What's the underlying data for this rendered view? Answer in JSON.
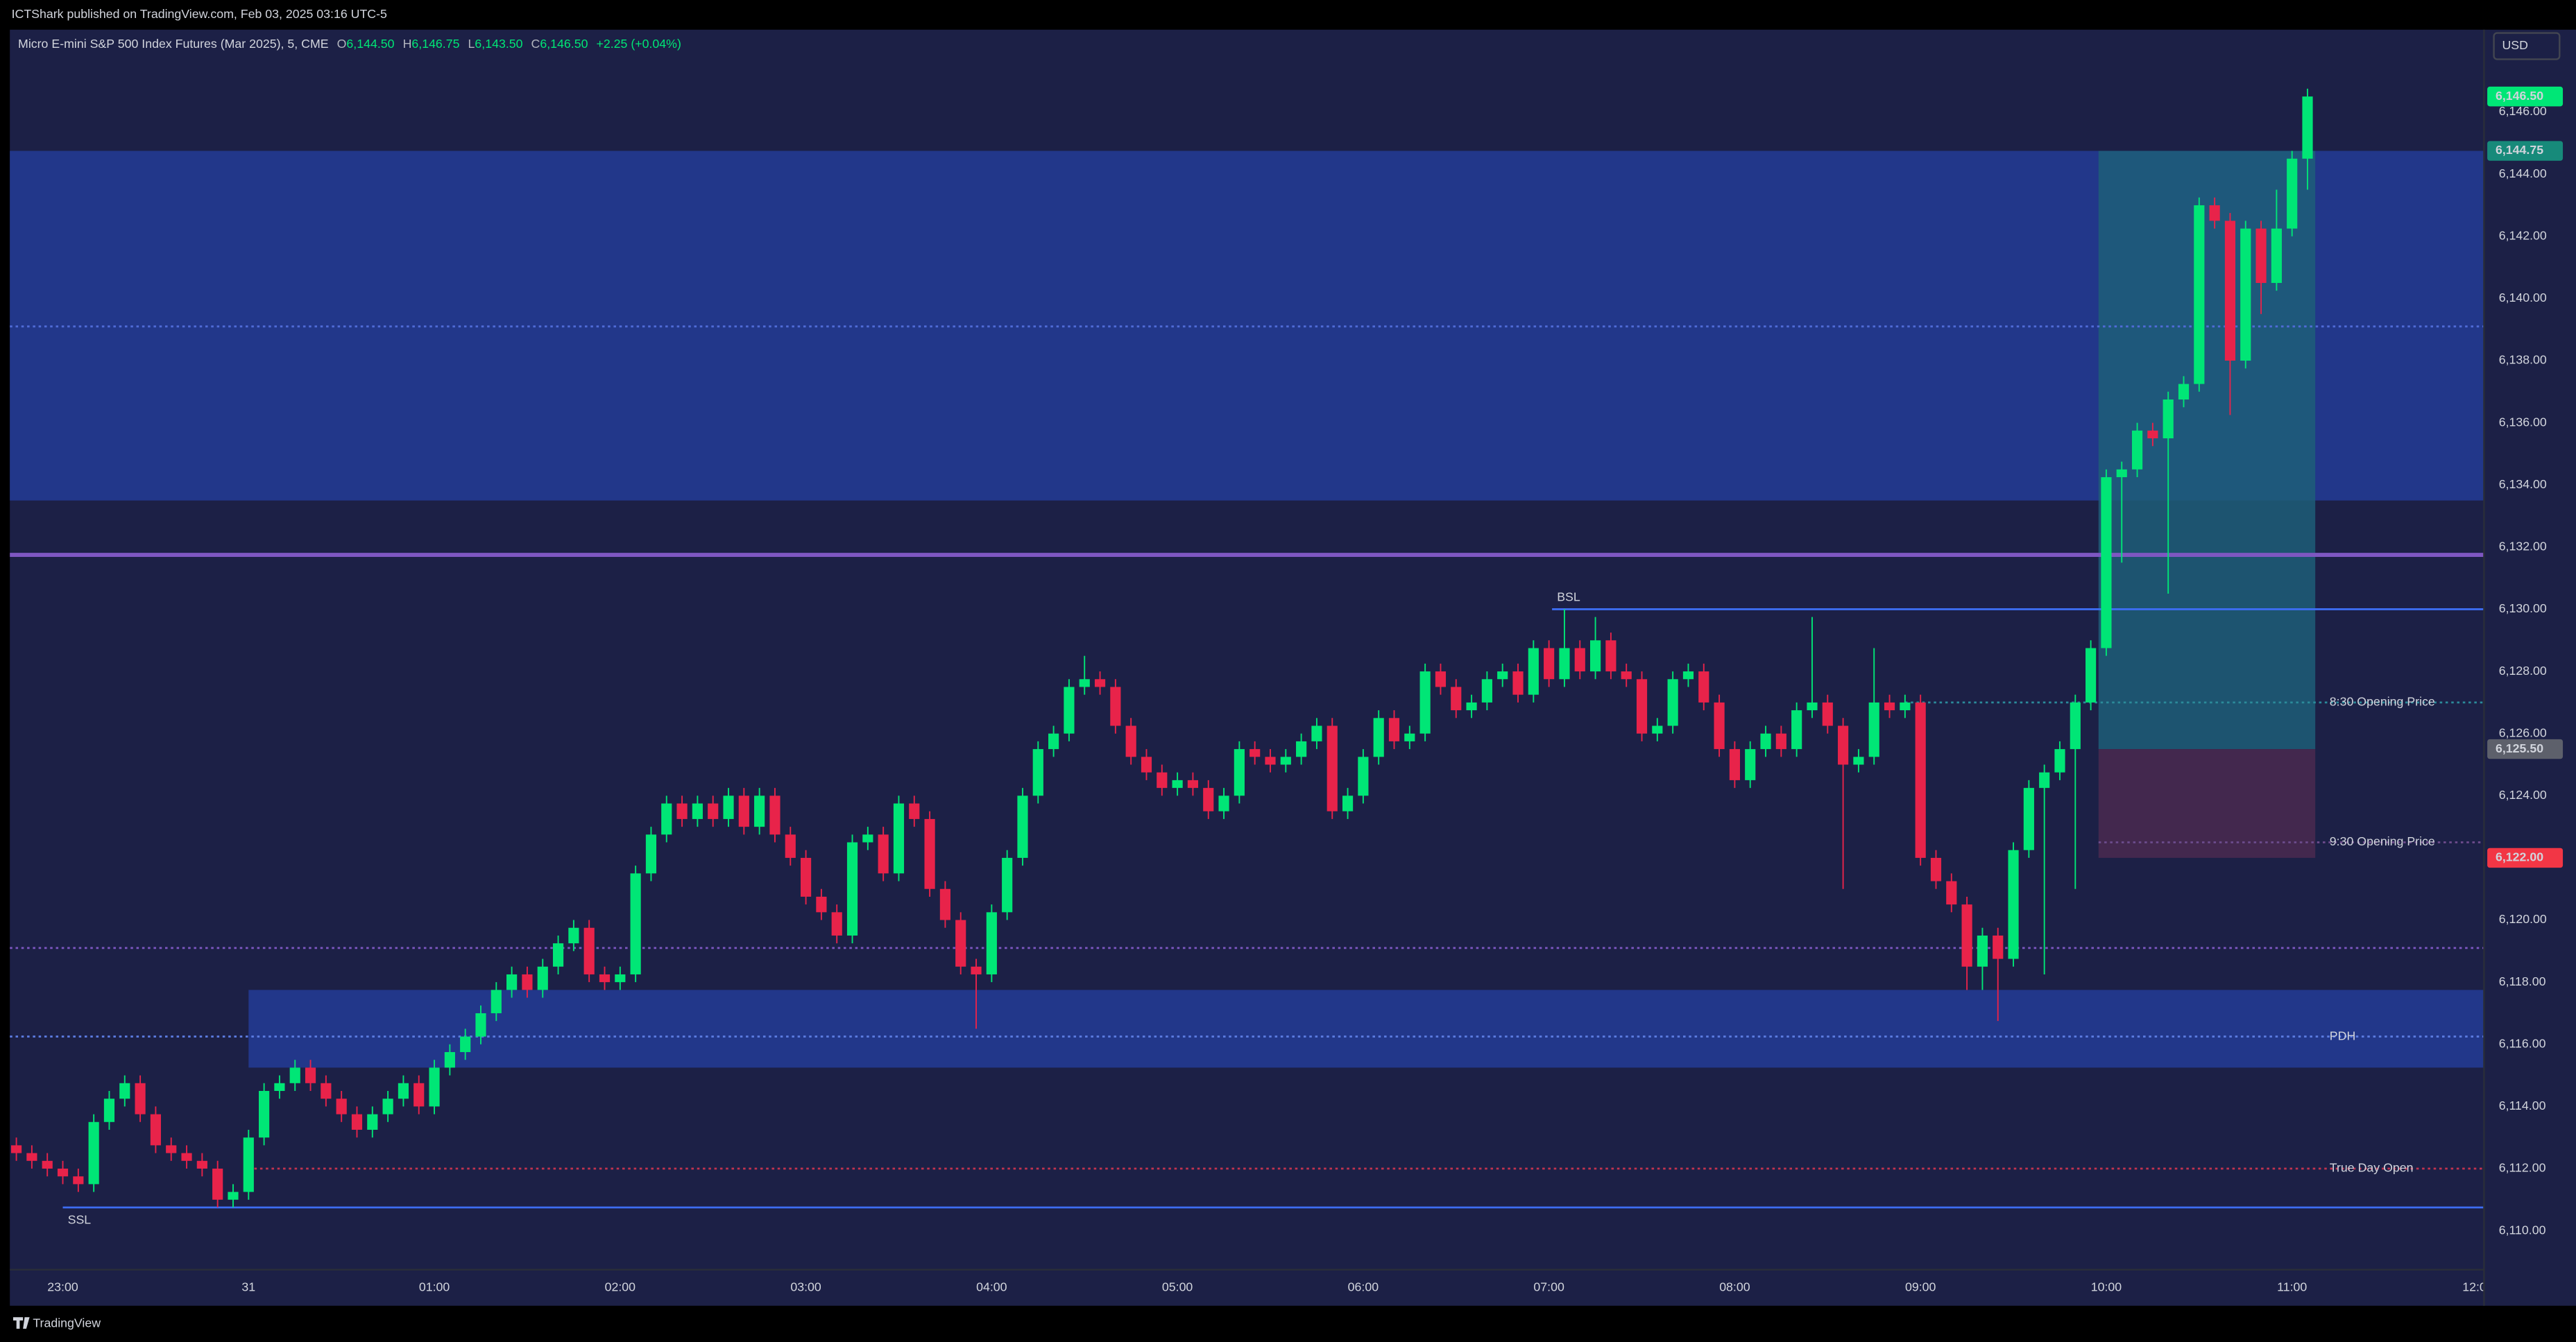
{
  "header": {
    "published": "ICTShark published on TradingView.com, Feb 03, 2025 03:16 UTC-5",
    "symbol": "Micro E-mini S&P 500 Index Futures (Mar 2025), 5, CME",
    "ohlc": [
      {
        "label": "O",
        "value": "6,144.50"
      },
      {
        "label": "H",
        "value": "6,146.75"
      },
      {
        "label": "L",
        "value": "6,143.50"
      },
      {
        "label": "C",
        "value": "6,146.50"
      }
    ],
    "change": "+2.25 (+0.04%)"
  },
  "footer": {
    "brand": "TradingView"
  },
  "chart_data": {
    "type": "candlestick",
    "currency": "USD",
    "up_color": "#00e676",
    "down_color": "#e8234a",
    "background": "#1c2046",
    "grid": false,
    "xlim": [
      -0.42,
      159.4
    ],
    "ylim": [
      6108.75,
      6148.65
    ],
    "xticks": [
      {
        "value": 3,
        "label": "23:00"
      },
      {
        "value": 15,
        "label": "31"
      },
      {
        "value": 27,
        "label": "01:00"
      },
      {
        "value": 39,
        "label": "02:00"
      },
      {
        "value": 51,
        "label": "03:00"
      },
      {
        "value": 63,
        "label": "04:00"
      },
      {
        "value": 75,
        "label": "05:00"
      },
      {
        "value": 87,
        "label": "06:00"
      },
      {
        "value": 99,
        "label": "07:00"
      },
      {
        "value": 111,
        "label": "08:00"
      },
      {
        "value": 123,
        "label": "09:00"
      },
      {
        "value": 135,
        "label": "10:00"
      },
      {
        "value": 147,
        "label": "11:00"
      },
      {
        "value": 159,
        "label": "12:00"
      }
    ],
    "yticks": [
      {
        "value": 6110,
        "label": "6,110.00"
      },
      {
        "value": 6112,
        "label": "6,112.00"
      },
      {
        "value": 6114,
        "label": "6,114.00"
      },
      {
        "value": 6116,
        "label": "6,116.00"
      },
      {
        "value": 6118,
        "label": "6,118.00"
      },
      {
        "value": 6120,
        "label": "6,120.00"
      },
      {
        "value": 6122,
        "label": "6,122.00"
      },
      {
        "value": 6124,
        "label": "6,124.00"
      },
      {
        "value": 6126,
        "label": "6,126.00"
      },
      {
        "value": 6128,
        "label": "6,128.00"
      },
      {
        "value": 6130,
        "label": "6,130.00"
      },
      {
        "value": 6132,
        "label": "6,132.00"
      },
      {
        "value": 6134,
        "label": "6,134.00"
      },
      {
        "value": 6136,
        "label": "6,136.00"
      },
      {
        "value": 6138,
        "label": "6,138.00"
      },
      {
        "value": 6140,
        "label": "6,140.00"
      },
      {
        "value": 6142,
        "label": "6,142.00"
      },
      {
        "value": 6144,
        "label": "6,144.00"
      },
      {
        "value": 6146,
        "label": "6,146.00"
      }
    ],
    "open": [
      6112.75,
      6112.5,
      6112.25,
      6112.0,
      6111.75,
      6111.5,
      6113.5,
      6114.25,
      6114.75,
      6113.75,
      6112.75,
      6112.5,
      6112.25,
      6112.0,
      6111.0,
      6111.25,
      6113.0,
      6114.5,
      6114.75,
      6115.25,
      6114.75,
      6114.25,
      6113.75,
      6113.25,
      6113.75,
      6114.25,
      6114.75,
      6114.0,
      6115.25,
      6115.75,
      6116.25,
      6117.0,
      6117.75,
      6118.25,
      6117.75,
      6118.5,
      6119.25,
      6119.75,
      6118.25,
      6118.0,
      6118.25,
      6121.5,
      6122.75,
      6123.75,
      6123.25,
      6123.75,
      6123.25,
      6124.0,
      6123.0,
      6124.0,
      6122.75,
      6122.0,
      6120.75,
      6120.25,
      6119.5,
      6122.5,
      6122.75,
      6121.5,
      6123.75,
      6123.25,
      6121.0,
      6120.0,
      6118.5,
      6118.25,
      6120.25,
      6122.0,
      6124.0,
      6125.5,
      6126.0,
      6127.5,
      6127.75,
      6127.5,
      6126.25,
      6125.25,
      6124.75,
      6124.25,
      6124.5,
      6124.25,
      6123.5,
      6124.0,
      6125.5,
      6125.25,
      6125.0,
      6125.25,
      6125.75,
      6126.25,
      6123.5,
      6124.0,
      6125.25,
      6126.5,
      6125.75,
      6126.0,
      6128.0,
      6127.5,
      6126.75,
      6127.0,
      6127.75,
      6128.0,
      6127.25,
      6128.75,
      6127.75,
      6128.75,
      6128.0,
      6129.0,
      6128.0,
      6127.75,
      6126.0,
      6126.25,
      6127.75,
      6128.0,
      6127.0,
      6125.5,
      6124.5,
      6125.5,
      6126.0,
      6125.5,
      6126.75,
      6127.0,
      6126.25,
      6125.0,
      6125.25,
      6127.0,
      6126.75,
      6127.0,
      6122.0,
      6121.25,
      6120.5,
      6118.5,
      6119.5,
      6118.75,
      6122.25,
      6124.25,
      6124.75,
      6125.5,
      6127.0,
      6128.75,
      6134.25,
      6134.5,
      6135.75,
      6135.5,
      6136.75,
      6137.25,
      6143.0,
      6142.5,
      6138.0,
      6142.25,
      6140.5,
      6142.25,
      6144.5
    ],
    "high": [
      6113.0,
      6112.75,
      6112.5,
      6112.25,
      6112.0,
      6113.75,
      6114.5,
      6115.0,
      6115.0,
      6114.0,
      6113.0,
      6112.75,
      6112.5,
      6112.25,
      6111.5,
      6113.25,
      6114.75,
      6115.0,
      6115.5,
      6115.5,
      6115.0,
      6114.5,
      6114.0,
      6114.0,
      6114.5,
      6115.0,
      6115.0,
      6115.5,
      6116.0,
      6116.5,
      6117.25,
      6118.0,
      6118.5,
      6118.5,
      6118.75,
      6119.5,
      6120.0,
      6120.0,
      6118.5,
      6118.5,
      6121.75,
      6123.0,
      6124.0,
      6124.0,
      6124.0,
      6124.0,
      6124.25,
      6124.25,
      6124.25,
      6124.25,
      6123.0,
      6122.25,
      6121.0,
      6120.5,
      6122.75,
      6123.0,
      6123.0,
      6124.0,
      6124.0,
      6123.5,
      6121.25,
      6120.25,
      6118.75,
      6120.5,
      6122.25,
      6124.25,
      6125.75,
      6126.25,
      6127.75,
      6128.5,
      6128.0,
      6127.75,
      6126.5,
      6125.5,
      6125.0,
      6124.75,
      6124.75,
      6124.5,
      6124.25,
      6125.75,
      6125.75,
      6125.5,
      6125.5,
      6126.0,
      6126.5,
      6126.5,
      6124.25,
      6125.5,
      6126.75,
      6126.75,
      6126.25,
      6128.25,
      6128.25,
      6127.75,
      6127.25,
      6128.0,
      6128.25,
      6128.25,
      6129.0,
      6129.0,
      6130.0,
      6129.0,
      6129.75,
      6129.25,
      6128.25,
      6128.0,
      6126.5,
      6128.0,
      6128.25,
      6128.25,
      6127.25,
      6125.75,
      6125.75,
      6126.25,
      6126.25,
      6127.0,
      6129.75,
      6127.25,
      6126.5,
      6125.5,
      6128.75,
      6127.25,
      6127.25,
      6127.25,
      6122.25,
      6121.5,
      6120.75,
      6119.75,
      6119.75,
      6122.5,
      6124.5,
      6125.0,
      6125.75,
      6127.25,
      6129.0,
      6134.5,
      6134.75,
      6136.0,
      6136.0,
      6137.0,
      6137.5,
      6143.25,
      6143.25,
      6142.75,
      6142.5,
      6142.5,
      6143.5,
      6144.75,
      6146.75
    ],
    "low": [
      6112.25,
      6112.0,
      6111.75,
      6111.5,
      6111.25,
      6111.25,
      6113.25,
      6114.0,
      6113.5,
      6112.5,
      6112.25,
      6112.0,
      6111.75,
      6110.75,
      6110.75,
      6111.0,
      6112.75,
      6114.25,
      6114.5,
      6114.5,
      6114.0,
      6113.5,
      6113.0,
      6113.0,
      6113.5,
      6114.0,
      6113.75,
      6113.75,
      6115.0,
      6115.5,
      6116.0,
      6116.75,
      6117.5,
      6117.5,
      6117.5,
      6118.25,
      6119.0,
      6118.0,
      6117.75,
      6117.75,
      6118.0,
      6121.25,
      6122.5,
      6123.0,
      6123.0,
      6123.0,
      6123.0,
      6122.75,
      6122.75,
      6122.5,
      6121.75,
      6120.5,
      6120.0,
      6119.25,
      6119.25,
      6122.25,
      6121.25,
      6121.25,
      6123.0,
      6120.75,
      6119.75,
      6118.25,
      6116.5,
      6118.0,
      6120.0,
      6121.75,
      6123.75,
      6125.25,
      6125.75,
      6127.25,
      6127.25,
      6126.0,
      6125.0,
      6124.5,
      6124.0,
      6124.0,
      6124.0,
      6123.25,
      6123.25,
      6123.75,
      6125.0,
      6124.75,
      6124.75,
      6125.0,
      6125.5,
      6123.25,
      6123.25,
      6123.75,
      6125.0,
      6125.5,
      6125.5,
      6125.75,
      6127.25,
      6126.5,
      6126.5,
      6126.75,
      6127.5,
      6127.0,
      6127.0,
      6127.5,
      6127.5,
      6127.75,
      6127.75,
      6127.75,
      6127.5,
      6125.75,
      6125.75,
      6126.0,
      6127.5,
      6126.75,
      6125.25,
      6124.25,
      6124.25,
      6125.25,
      6125.25,
      6125.25,
      6126.5,
      6126.0,
      6121.0,
      6124.75,
      6125.0,
      6126.5,
      6126.5,
      6121.75,
      6121.0,
      6120.25,
      6117.75,
      6117.75,
      6116.75,
      6118.5,
      6122.0,
      6118.25,
      6124.5,
      6121.0,
      6126.75,
      6128.5,
      6131.5,
      6134.25,
      6135.25,
      6130.5,
      6136.5,
      6137.0,
      6142.25,
      6136.25,
      6137.75,
      6139.5,
      6140.25,
      6142.0,
      6143.5
    ],
    "close": [
      6112.5,
      6112.25,
      6112.0,
      6111.75,
      6111.5,
      6113.5,
      6114.25,
      6114.75,
      6113.75,
      6112.75,
      6112.5,
      6112.25,
      6112.0,
      6111.0,
      6111.25,
      6113.0,
      6114.5,
      6114.75,
      6115.25,
      6114.75,
      6114.25,
      6113.75,
      6113.25,
      6113.75,
      6114.25,
      6114.75,
      6114.0,
      6115.25,
      6115.75,
      6116.25,
      6117.0,
      6117.75,
      6118.25,
      6117.75,
      6118.5,
      6119.25,
      6119.75,
      6118.25,
      6118.0,
      6118.25,
      6121.5,
      6122.75,
      6123.75,
      6123.25,
      6123.75,
      6123.25,
      6124.0,
      6123.0,
      6124.0,
      6122.75,
      6122.0,
      6120.75,
      6120.25,
      6119.5,
      6122.5,
      6122.75,
      6121.5,
      6123.75,
      6123.25,
      6121.0,
      6120.0,
      6118.5,
      6118.25,
      6120.25,
      6122.0,
      6124.0,
      6125.5,
      6126.0,
      6127.5,
      6127.75,
      6127.5,
      6126.25,
      6125.25,
      6124.75,
      6124.25,
      6124.5,
      6124.25,
      6123.5,
      6124.0,
      6125.5,
      6125.25,
      6125.0,
      6125.25,
      6125.75,
      6126.25,
      6123.5,
      6124.0,
      6125.25,
      6126.5,
      6125.75,
      6126.0,
      6128.0,
      6127.5,
      6126.75,
      6127.0,
      6127.75,
      6128.0,
      6127.25,
      6128.75,
      6127.75,
      6128.75,
      6128.0,
      6129.0,
      6128.0,
      6127.75,
      6126.0,
      6126.25,
      6127.75,
      6128.0,
      6127.0,
      6125.5,
      6124.5,
      6125.5,
      6126.0,
      6125.5,
      6126.75,
      6127.0,
      6126.25,
      6125.0,
      6125.25,
      6127.0,
      6126.75,
      6127.0,
      6122.0,
      6121.25,
      6120.5,
      6118.5,
      6119.5,
      6118.75,
      6122.25,
      6124.25,
      6124.75,
      6125.5,
      6127.0,
      6128.75,
      6134.25,
      6134.5,
      6135.75,
      6135.5,
      6136.75,
      6137.25,
      6143.0,
      6142.5,
      6138.0,
      6142.25,
      6140.5,
      6142.25,
      6144.5,
      6146.5
    ],
    "zones": [
      {
        "from": 6133.5,
        "to": 6144.75,
        "start": -0.42,
        "color": "#22378a"
      },
      {
        "from": 6115.25,
        "to": 6117.75,
        "start": 15,
        "color": "#22378a"
      }
    ],
    "position": {
      "start": 134.5,
      "end": 148.5,
      "target": 6144.75,
      "entry": 6125.5,
      "stop": 6122.0,
      "profit_color": "#1d5e78",
      "loss_color": "#48294f"
    },
    "levels": [
      {
        "value": 6139.1,
        "start": -0.42,
        "color": "#4f6bd6",
        "style": "dotted"
      },
      {
        "value": 6131.75,
        "start": -0.42,
        "color": "#7e57c2",
        "style": "solid",
        "width": 2.5
      },
      {
        "value": 6130.0,
        "start": 99.2,
        "color": "#3d6df2",
        "style": "solid",
        "label": "BSL",
        "label_at": "start-above"
      },
      {
        "value": 6127.0,
        "start": 122,
        "color": "#2b8a9a",
        "style": "dotted",
        "label": "8:30 Opening Price",
        "label_at": "end"
      },
      {
        "value": 6122.5,
        "start": 134.5,
        "color": "#6a4a8a",
        "style": "dotted",
        "label": "9:30 Opening Price",
        "label_at": "end"
      },
      {
        "value": 6119.1,
        "start": -0.42,
        "color": "#7e57c2",
        "style": "dotted"
      },
      {
        "value": 6116.25,
        "start": -0.42,
        "color": "#5b7be0",
        "style": "dotted",
        "label": "PDH",
        "label_at": "end"
      },
      {
        "value": 6112.0,
        "start": 15,
        "color": "#c2334f",
        "style": "dotted",
        "label": "True Day Open",
        "label_at": "end"
      },
      {
        "value": 6110.75,
        "start": 3,
        "color": "#3d6df2",
        "style": "solid",
        "label": "SSL",
        "label_at": "start-below"
      }
    ],
    "price_tags": [
      {
        "value": 6146.5,
        "label": "6,146.50",
        "color": "#00e676",
        "text_color": "#0b0e1a"
      },
      {
        "value": 6144.75,
        "label": "6,144.75",
        "color": "#178a7a",
        "text_color": "#ffffff"
      },
      {
        "value": 6125.5,
        "label": "6,125.50",
        "color": "#5d606b",
        "text_color": "#ffffff"
      },
      {
        "value": 6122.0,
        "label": "6,122.00",
        "color": "#f23645",
        "text_color": "#ffffff"
      }
    ]
  }
}
